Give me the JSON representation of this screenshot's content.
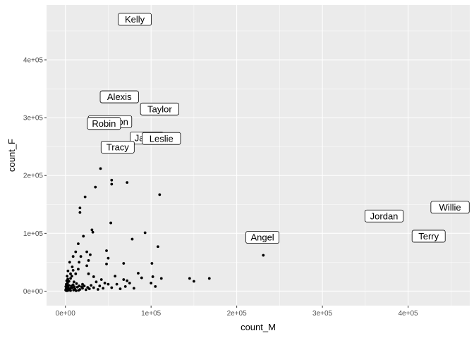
{
  "chart_data": {
    "type": "scatter",
    "title": "",
    "xlabel": "count_M",
    "ylabel": "count_F",
    "xlim": [
      -22000,
      472000
    ],
    "ylim": [
      -25000,
      495000
    ],
    "x_ticks": [
      0,
      100000,
      200000,
      300000,
      400000
    ],
    "x_tick_labels": [
      "0e+00",
      "1e+05",
      "2e+05",
      "3e+05",
      "4e+05"
    ],
    "y_ticks": [
      0,
      100000,
      200000,
      300000,
      400000
    ],
    "y_tick_labels": [
      "0e+00",
      "1e+05",
      "2e+05",
      "3e+05",
      "4e+05"
    ],
    "grid": true,
    "legend": "none",
    "background": "#ebebeb",
    "grid_color": "#ffffff",
    "point_color": "#000000",
    "labeled_points": [
      {
        "name": "Kelly",
        "x": 81000,
        "y": 470000
      },
      {
        "name": "Alexis",
        "x": 63000,
        "y": 336000
      },
      {
        "name": "Taylor",
        "x": 110000,
        "y": 315000
      },
      {
        "name": "Robin",
        "x": 45000,
        "y": 290000
      },
      {
        "name": "Jamie",
        "x": 95000,
        "y": 265000
      },
      {
        "name": "Leslie",
        "x": 112000,
        "y": 264000
      },
      {
        "name": "Tracy",
        "x": 61000,
        "y": 249000
      },
      {
        "name": "Angel",
        "x": 230000,
        "y": 93000
      },
      {
        "name": "Jordan",
        "x": 372000,
        "y": 130000
      },
      {
        "name": "Terry",
        "x": 424000,
        "y": 95000
      },
      {
        "name": "Willie",
        "x": 449000,
        "y": 145000
      }
    ],
    "hidden_labels": [
      {
        "name": "Shannon",
        "x": 52000,
        "y": 293000
      }
    ],
    "points": [
      [
        231000,
        62000
      ],
      [
        110000,
        167000
      ],
      [
        72000,
        188000
      ],
      [
        54000,
        192000
      ],
      [
        54000,
        185000
      ],
      [
        41000,
        212000
      ],
      [
        35000,
        180000
      ],
      [
        23000,
        163000
      ],
      [
        17000,
        144000
      ],
      [
        17000,
        136000
      ],
      [
        53000,
        118000
      ],
      [
        31000,
        106000
      ],
      [
        32000,
        102000
      ],
      [
        93000,
        101000
      ],
      [
        21000,
        95000
      ],
      [
        78000,
        90000
      ],
      [
        15000,
        82000
      ],
      [
        108000,
        77000
      ],
      [
        48000,
        70000
      ],
      [
        25000,
        68000
      ],
      [
        12000,
        68000
      ],
      [
        9000,
        60000
      ],
      [
        18000,
        60000
      ],
      [
        29000,
        63000
      ],
      [
        50000,
        57000
      ],
      [
        27000,
        53000
      ],
      [
        5000,
        50000
      ],
      [
        68000,
        48000
      ],
      [
        101000,
        48000
      ],
      [
        48000,
        47000
      ],
      [
        25000,
        44000
      ],
      [
        8000,
        42000
      ],
      [
        15000,
        38000
      ],
      [
        3000,
        35000
      ],
      [
        6000,
        30000
      ],
      [
        12000,
        30000
      ],
      [
        27000,
        30000
      ],
      [
        33000,
        25000
      ],
      [
        58000,
        26000
      ],
      [
        85000,
        31000
      ],
      [
        89000,
        23000
      ],
      [
        102000,
        25000
      ],
      [
        112000,
        22000
      ],
      [
        145000,
        22000
      ],
      [
        168000,
        22000
      ],
      [
        150000,
        17000
      ],
      [
        72000,
        18000
      ],
      [
        68000,
        20000
      ],
      [
        75000,
        14000
      ],
      [
        50000,
        12000
      ],
      [
        60000,
        12000
      ],
      [
        70000,
        8000
      ],
      [
        100000,
        14000
      ],
      [
        105000,
        8000
      ],
      [
        40000,
        9000
      ],
      [
        30000,
        10000
      ],
      [
        20000,
        12000
      ],
      [
        10000,
        16000
      ],
      [
        6000,
        22000
      ],
      [
        2000,
        26000
      ],
      [
        1500,
        18000
      ],
      [
        1000,
        12000
      ],
      [
        500,
        8000
      ],
      [
        800,
        4000
      ],
      [
        300,
        2000
      ],
      [
        3000,
        6000
      ],
      [
        5000,
        3000
      ],
      [
        8000,
        6000
      ],
      [
        11000,
        4000
      ],
      [
        14000,
        7000
      ],
      [
        17000,
        3000
      ],
      [
        20000,
        5000
      ],
      [
        24000,
        2500
      ],
      [
        28000,
        4000
      ],
      [
        33000,
        6000
      ],
      [
        38000,
        3000
      ],
      [
        44000,
        5000
      ],
      [
        4000,
        10000
      ],
      [
        2500,
        14000
      ],
      [
        7000,
        9000
      ],
      [
        9000,
        11000
      ],
      [
        13000,
        13000
      ],
      [
        16000,
        9000
      ],
      [
        19000,
        7500
      ],
      [
        22000,
        9000
      ],
      [
        26000,
        6500
      ],
      [
        1200,
        5000
      ],
      [
        2200,
        3500
      ],
      [
        3500,
        1500
      ],
      [
        6000,
        1000
      ],
      [
        9500,
        1800
      ],
      [
        12500,
        800
      ],
      [
        15500,
        1500
      ],
      [
        1800,
        800
      ],
      [
        700,
        1200
      ],
      [
        4500,
        4500
      ],
      [
        6500,
        5500
      ],
      [
        10500,
        7500
      ],
      [
        1600,
        9500
      ],
      [
        2800,
        21000
      ],
      [
        4200,
        17000
      ],
      [
        7500,
        26000
      ],
      [
        9000,
        36000
      ],
      [
        16000,
        50000
      ],
      [
        36000,
        16000
      ],
      [
        46000,
        14000
      ],
      [
        54000,
        6000
      ],
      [
        64000,
        4000
      ],
      [
        80000,
        5000
      ],
      [
        42000,
        20000
      ]
    ]
  }
}
